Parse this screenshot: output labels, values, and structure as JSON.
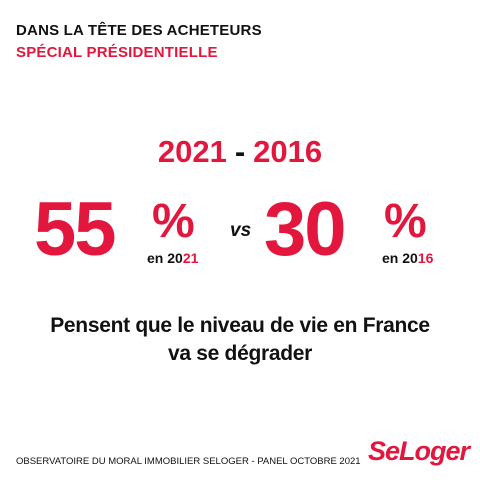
{
  "header": {
    "line1": "DANS LA TÊTE DES ACHETEURS",
    "line2": "SPÉCIAL PRÉSIDENTIELLE"
  },
  "years_heading": {
    "year_a": "2021",
    "separator": "-",
    "year_b": "2016"
  },
  "stat_2021": {
    "value": "55",
    "percent_sign": "%",
    "label_prefix": "en 20",
    "label_suffix": "21"
  },
  "versus": "vs",
  "stat_2016": {
    "value": "30",
    "percent_sign": "%",
    "label_prefix": "en 20",
    "label_suffix": "16"
  },
  "statement": {
    "line1": "Pensent que le niveau de vie en France",
    "line2": "va se dégrader"
  },
  "footer": "OBSERVATOIRE DU MORAL IMMOBILIER SELOGER - PANEL OCTOBRE 2021",
  "logo_text": "SeLoger",
  "colors": {
    "accent": "#e3173e",
    "text": "#111111",
    "background": "#ffffff"
  }
}
